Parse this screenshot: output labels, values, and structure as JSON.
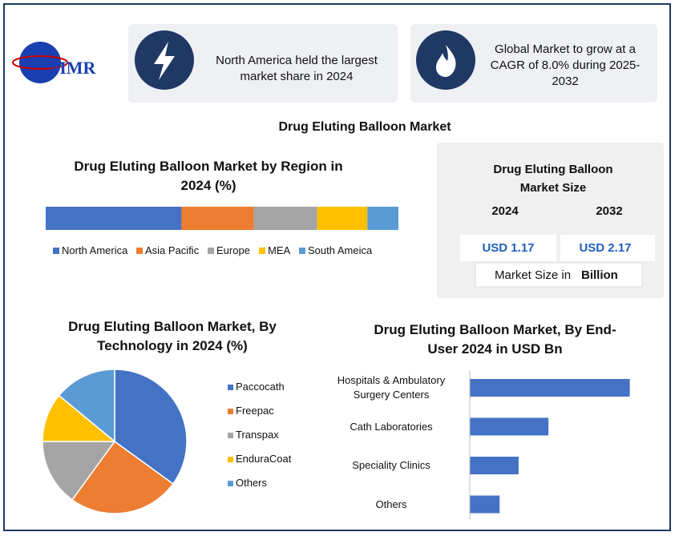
{
  "header": {
    "logo": "MMR",
    "cards": [
      "North America held the largest market share in 2024",
      "Global Market to grow at a CAGR of 8.0% during 2025-2032"
    ]
  },
  "title": "Drug Eluting Balloon Market",
  "market_size": {
    "title": "Drug Eluting Balloon Market Size",
    "years": [
      "2024",
      "2032"
    ],
    "values": [
      "USD 1.17",
      "USD 2.17"
    ],
    "unit_label": "Market Size in",
    "unit": "Billion"
  },
  "chart_data": [
    {
      "type": "stacked_bar",
      "title": "Drug Eluting Balloon Market by Region in 2024 (%)",
      "xlim": [
        0,
        100
      ],
      "series": [
        {
          "name": "North America",
          "color": "#4472c4",
          "values": [
            38.5
          ]
        },
        {
          "name": "Asia Pacific",
          "color": "#ed7d31",
          "values": [
            20.5
          ]
        },
        {
          "name": "Europe",
          "color": "#a5a5a5",
          "values": [
            18
          ]
        },
        {
          "name": "MEA",
          "color": "#ffc000",
          "values": [
            14.2
          ]
        },
        {
          "name": "South Ameica",
          "color": "#5b9bd5",
          "values": [
            8.8
          ]
        }
      ]
    },
    {
      "type": "pie",
      "title": "Drug Eluting Balloon Market, By Technology in 2024 (%)",
      "categories": [
        "Paccocath",
        "Freepac",
        "Transpax",
        "EnduraCoat",
        "Others"
      ],
      "values": [
        35,
        25,
        15,
        11,
        14
      ],
      "colors": [
        "#4472c4",
        "#ed7d31",
        "#a5a5a5",
        "#ffc000",
        "#5b9bd5"
      ]
    },
    {
      "type": "hbar",
      "title": "Drug Eluting Balloon Market, By End-User 2024 in USD Bn",
      "xlim": [
        0,
        0.6
      ],
      "color": "#4472c4",
      "categories": [
        "Hospitals & Ambulatory Surgery Centers",
        "Cath Laboratories",
        "Speciality Clinics",
        "Others"
      ],
      "values": [
        0.59,
        0.29,
        0.18,
        0.11
      ]
    }
  ]
}
